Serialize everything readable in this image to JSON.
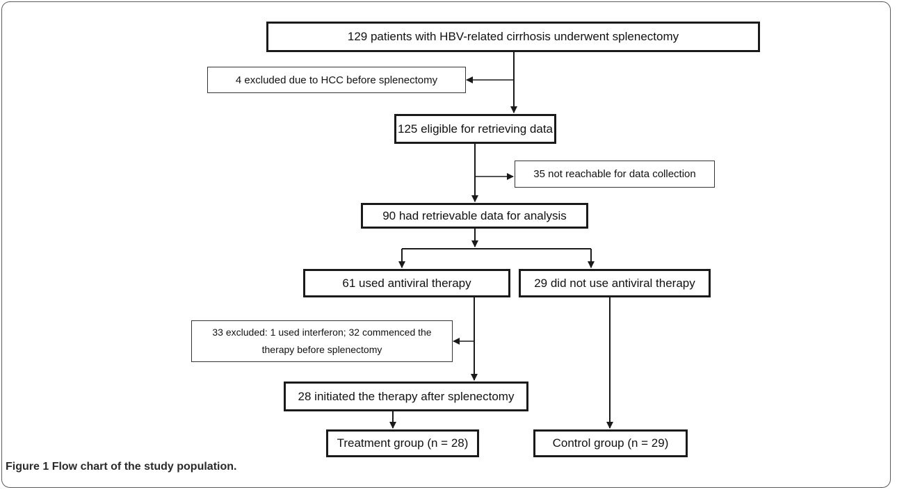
{
  "boxes": {
    "b1": "129 patients with HBV-related cirrhosis underwent splenectomy",
    "ex1": "4 excluded due to HCC before splenectomy",
    "b2": "125 eligible for retrieving data",
    "ex2": "35 not reachable for data collection",
    "b3": "90 had retrievable data for analysis",
    "b4": "61 used antiviral therapy",
    "b5": "29 did not use antiviral therapy",
    "ex3_line1": "33 excluded: 1 used interferon; 32 commenced the",
    "ex3_line2": "therapy before splenectomy",
    "b6": "28 initiated the therapy after splenectomy",
    "b7": "Treatment group (n = 28)",
    "b8": "Control group (n = 29)"
  },
  "caption": {
    "label": "Figure 1",
    "title": "Flow chart of the study population."
  },
  "colors": {
    "stroke": "#1a1a1a",
    "frame": "#5a5a5a",
    "text": "#111111"
  }
}
